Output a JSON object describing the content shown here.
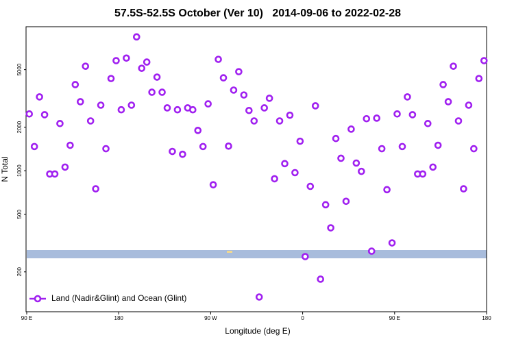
{
  "chart_data": {
    "type": "scatter",
    "title": "57.5S-52.5S October (Ver 10)   2014-09-06 to 2022-02-28",
    "xlabel": "Longitude (deg E)",
    "ylabel": "N Total",
    "xlim": [
      90,
      540
    ],
    "xticks": [
      {
        "value": 90,
        "label": "90 E"
      },
      180,
      {
        "value": 270,
        "label": "90 W"
      },
      {
        "value": 360,
        "label": "0"
      },
      {
        "value": 450,
        "label": "90 E"
      },
      {
        "value": 540,
        "label": "180"
      }
    ],
    "ylim": [
      106,
      9900
    ],
    "yscale": "log",
    "yticks": [
      200,
      500,
      1000,
      2000,
      5000
    ],
    "legend": "lower left",
    "series": [
      {
        "name": "Land (Nadir&Glint) and Ocean (Glint)",
        "color": "#a020f0",
        "x": [
          92.5,
          97.5,
          102.5,
          107.5,
          112.5,
          117.5,
          122.5,
          127.5,
          132.5,
          137.5,
          142.5,
          147.5,
          152.5,
          157.5,
          162.5,
          167.5,
          172.5,
          177.5,
          182.5,
          187.5,
          192.5,
          197.5,
          202.5,
          207.5,
          212.5,
          217.5,
          222.5,
          227.5,
          232.5,
          237.5,
          242.5,
          247.5,
          252.5,
          257.5,
          262.5,
          267.5,
          272.5,
          277.5,
          282.5,
          287.5,
          292.5,
          297.5,
          302.5,
          307.5,
          312.5,
          317.5,
          322.5,
          327.5,
          332.5,
          337.5,
          342.5,
          347.5,
          352.5,
          357.5,
          362.5,
          367.5,
          372.5,
          377.5,
          382.5,
          387.5,
          392.5,
          397.5,
          402.5,
          407.5,
          412.5,
          417.5,
          422.5,
          427.5,
          432.5,
          437.5,
          442.5,
          447.5,
          452.5,
          457.5,
          462.5,
          467.5,
          472.5,
          477.5,
          482.5,
          487.5,
          492.5,
          497.5,
          502.5,
          507.5,
          512.5,
          517.5,
          522.5,
          527.5,
          532.5,
          537.5
        ],
        "values": [
          2470,
          1470,
          3240,
          2440,
          950,
          950,
          2120,
          1060,
          1500,
          3940,
          3000,
          5280,
          2210,
          750,
          2840,
          1420,
          4340,
          5770,
          2640,
          6010,
          2840,
          8420,
          5110,
          5640,
          3490,
          4440,
          3490,
          2720,
          1360,
          2640,
          1300,
          2720,
          2640,
          1900,
          1470,
          2900,
          800,
          5890,
          4390,
          1480,
          3610,
          4840,
          3340,
          2610,
          2210,
          134,
          2720,
          3170,
          880,
          2210,
          1120,
          2420,
          970,
          1600,
          255,
          780,
          2810,
          178,
          582,
          403,
          1670,
          1220,
          615,
          1940,
          1130,
          990,
          2290,
          278,
          2310,
          1420,
          740,
          317,
          2470,
          1470,
          3240,
          2440,
          950,
          950,
          2120,
          1060,
          1500,
          3940,
          3000,
          5280,
          2210,
          750,
          2840,
          1420,
          4340,
          5770
        ]
      }
    ]
  }
}
